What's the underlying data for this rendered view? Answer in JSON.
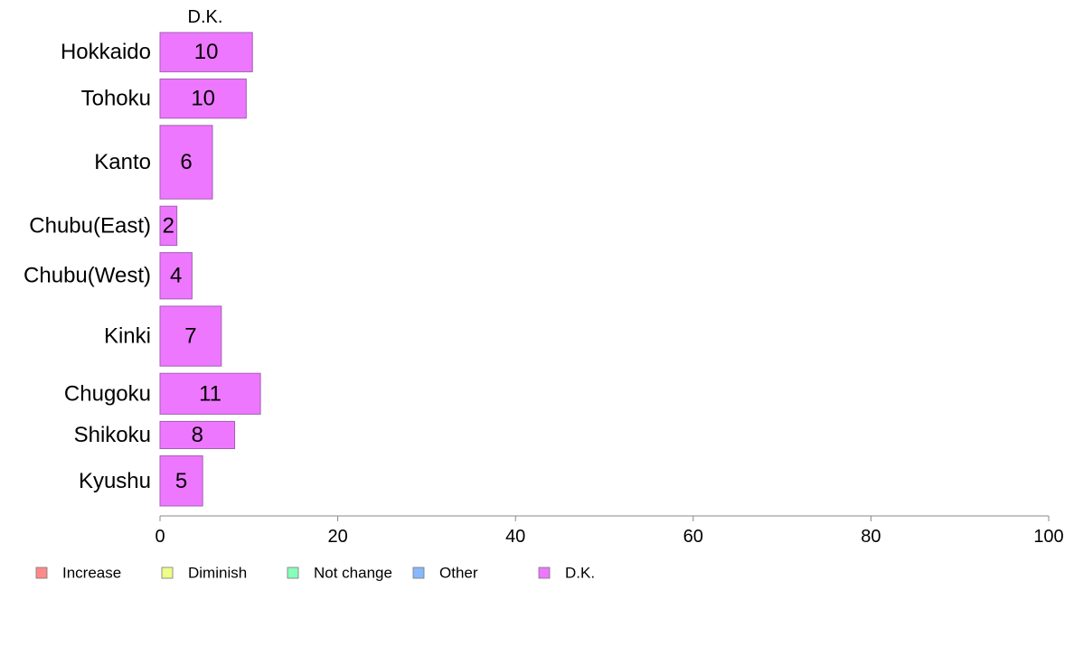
{
  "chart_data": {
    "type": "bar",
    "orientation": "horizontal",
    "stacked": true,
    "categories": [
      "Hokkaido",
      "Tohoku",
      "Kanto",
      "Chubu(East)",
      "Chubu(West)",
      "Kinki",
      "Chugoku",
      "Shikoku",
      "Kyushu"
    ],
    "category_weights": [
      0.72,
      0.72,
      1.35,
      0.72,
      0.85,
      1.1,
      0.75,
      0.5,
      0.92
    ],
    "series": [
      {
        "name": "Increase",
        "color": "#ff8a8a",
        "values": [
          0,
          0,
          0,
          0,
          0,
          0,
          0,
          0,
          0
        ]
      },
      {
        "name": "Diminish",
        "color": "#eeff88",
        "values": [
          0,
          0,
          0,
          0,
          0,
          0,
          0,
          0,
          0
        ]
      },
      {
        "name": "Not change",
        "color": "#88ffbb",
        "values": [
          0,
          0,
          0,
          0,
          0,
          0,
          0,
          0,
          0
        ]
      },
      {
        "name": "Other",
        "color": "#88b8ff",
        "values": [
          0,
          0,
          0,
          0,
          0,
          0,
          0,
          0,
          0
        ]
      },
      {
        "name": "D.K.",
        "color": "#ee77ff",
        "values": [
          10.4,
          9.7,
          5.9,
          1.9,
          3.6,
          6.9,
          11.3,
          8.4,
          4.8
        ]
      }
    ],
    "value_labels": [
      "10",
      "10",
      "6",
      "2",
      "4",
      "7",
      "11",
      "8",
      "5"
    ],
    "visible_series_titles": [
      "D.K."
    ],
    "xlim": [
      0,
      100
    ],
    "xticks": [
      0,
      20,
      40,
      60,
      80,
      100
    ],
    "title": "",
    "xlabel": "",
    "ylabel": "",
    "grid": false,
    "legend_position": "bottom-left"
  }
}
